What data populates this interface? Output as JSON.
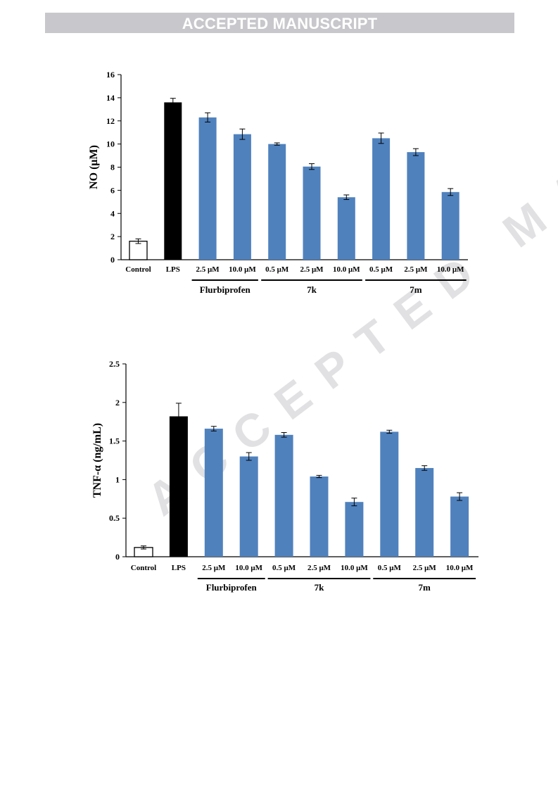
{
  "header": {
    "banner": "ACCEPTED MANUSCRIPT",
    "watermark": "ACCEPTED MANUSCRIPT"
  },
  "colors": {
    "control": "#ffffff",
    "lps": "#000000",
    "treatment": "#4f81bd",
    "banner_bg": "#c8c8cc"
  },
  "chart_data": [
    {
      "type": "bar",
      "title": "",
      "ylabel": "NO (μM)",
      "xlabel": "",
      "ylim": [
        0,
        16
      ],
      "yticks": [
        0,
        2,
        4,
        6,
        8,
        10,
        12,
        14,
        16
      ],
      "categories": [
        "Control",
        "LPS",
        "2.5 μM",
        "10.0 μM",
        "0.5 μM",
        "2.5 μM",
        "10.0 μM",
        "0.5 μM",
        "2.5 μM",
        "10.0 μM"
      ],
      "values": [
        1.6,
        13.6,
        12.3,
        10.85,
        10.0,
        8.05,
        5.4,
        10.5,
        9.3,
        5.85
      ],
      "errors": [
        0.2,
        0.35,
        0.4,
        0.45,
        0.1,
        0.25,
        0.2,
        0.45,
        0.3,
        0.3
      ],
      "groups": [
        {
          "label": "Flurbiprofen",
          "from": 2,
          "to": 3
        },
        {
          "label": "7k",
          "from": 4,
          "to": 6
        },
        {
          "label": "7m",
          "from": 7,
          "to": 9
        }
      ],
      "grid": false
    },
    {
      "type": "bar",
      "title": "",
      "ylabel": "TNF-α (ng/mL)",
      "xlabel": "",
      "ylim": [
        0,
        2.5
      ],
      "yticks": [
        0,
        0.5,
        1,
        1.5,
        2,
        2.5
      ],
      "categories": [
        "Control",
        "LPS",
        "2.5 μM",
        "10.0 μM",
        "0.5 μM",
        "2.5 μM",
        "10.0 μM",
        "0.5 μM",
        "2.5 μM",
        "10.0 μM"
      ],
      "values": [
        0.12,
        1.82,
        1.66,
        1.3,
        1.58,
        1.04,
        0.71,
        1.62,
        1.15,
        0.78
      ],
      "errors": [
        0.02,
        0.17,
        0.03,
        0.05,
        0.03,
        0.015,
        0.05,
        0.02,
        0.03,
        0.05
      ],
      "groups": [
        {
          "label": "Flurbiprofen",
          "from": 2,
          "to": 3
        },
        {
          "label": "7k",
          "from": 4,
          "to": 6
        },
        {
          "label": "7m",
          "from": 7,
          "to": 9
        }
      ],
      "grid": false
    }
  ]
}
